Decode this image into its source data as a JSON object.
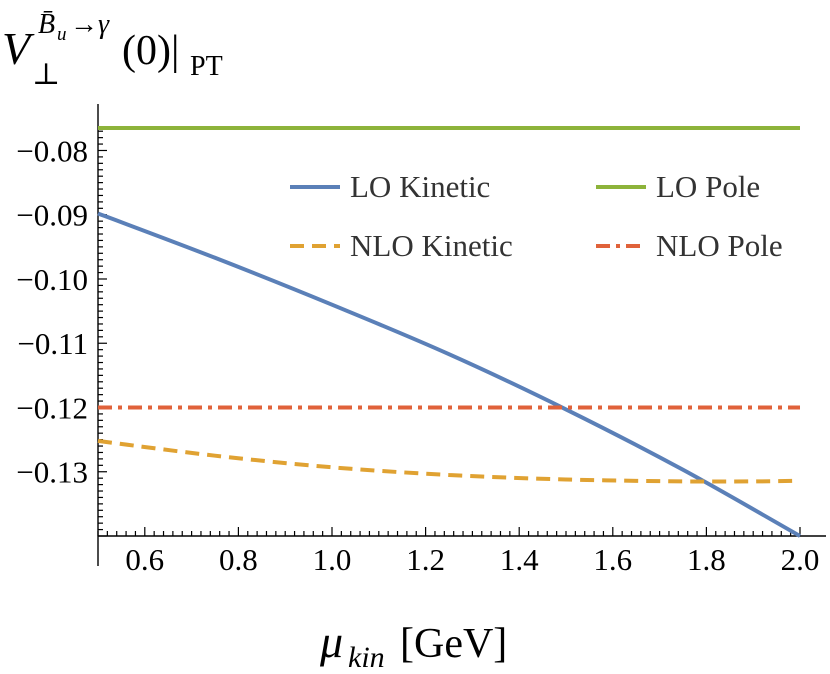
{
  "chart_data": {
    "type": "line",
    "title": {
      "base": "V",
      "sub": "⊥",
      "sup_letter": "B̄",
      "sup_letter_sub": "u",
      "sup_rest": "→γ",
      "args": "(0)|",
      "tail_sub": "PT"
    },
    "xlabel": {
      "symbol": "μ",
      "sub": "kin",
      "unit": "[GeV]"
    },
    "ylabel": "",
    "xlim": [
      0.5,
      2.0
    ],
    "ylim": [
      -0.14,
      -0.0765
    ],
    "x_ticks": [
      0.6,
      0.8,
      1.0,
      1.2,
      1.4,
      1.6,
      1.8,
      2.0
    ],
    "x_tick_labels": [
      "0.6",
      "0.8",
      "1.0",
      "1.2",
      "1.4",
      "1.6",
      "1.8",
      "2.0"
    ],
    "y_ticks": [
      -0.08,
      -0.09,
      -0.1,
      -0.11,
      -0.12,
      -0.13
    ],
    "y_tick_labels": [
      "−0.08",
      "−0.09",
      "−0.10",
      "−0.11",
      "−0.12",
      "−0.13"
    ],
    "grid": false,
    "legend_position": "top-right",
    "series": [
      {
        "name": "LO Kinetic",
        "color": "#5b80b8",
        "style": "solid",
        "x": [
          0.5,
          0.75,
          1.0,
          1.25,
          1.5,
          1.75,
          2.0
        ],
        "y": [
          -0.0898,
          -0.0967,
          -0.104,
          -0.1117,
          -0.1203,
          -0.1297,
          -0.14
        ]
      },
      {
        "name": "LO Pole",
        "color": "#8db33a",
        "style": "solid",
        "x": [
          0.5,
          2.0
        ],
        "y": [
          -0.0765,
          -0.0765
        ]
      },
      {
        "name": "NLO Kinetic",
        "color": "#e0a232",
        "style": "dashed",
        "x": [
          0.5,
          0.75,
          1.0,
          1.25,
          1.5,
          1.75,
          1.9,
          2.0
        ],
        "y": [
          -0.1252,
          -0.1275,
          -0.1293,
          -0.1305,
          -0.1312,
          -0.1315,
          -0.1315,
          -0.1314
        ]
      },
      {
        "name": "NLO Pole",
        "color": "#e0623a",
        "style": "dashdot",
        "x": [
          0.5,
          2.0
        ],
        "y": [
          -0.12,
          -0.12
        ]
      }
    ]
  }
}
